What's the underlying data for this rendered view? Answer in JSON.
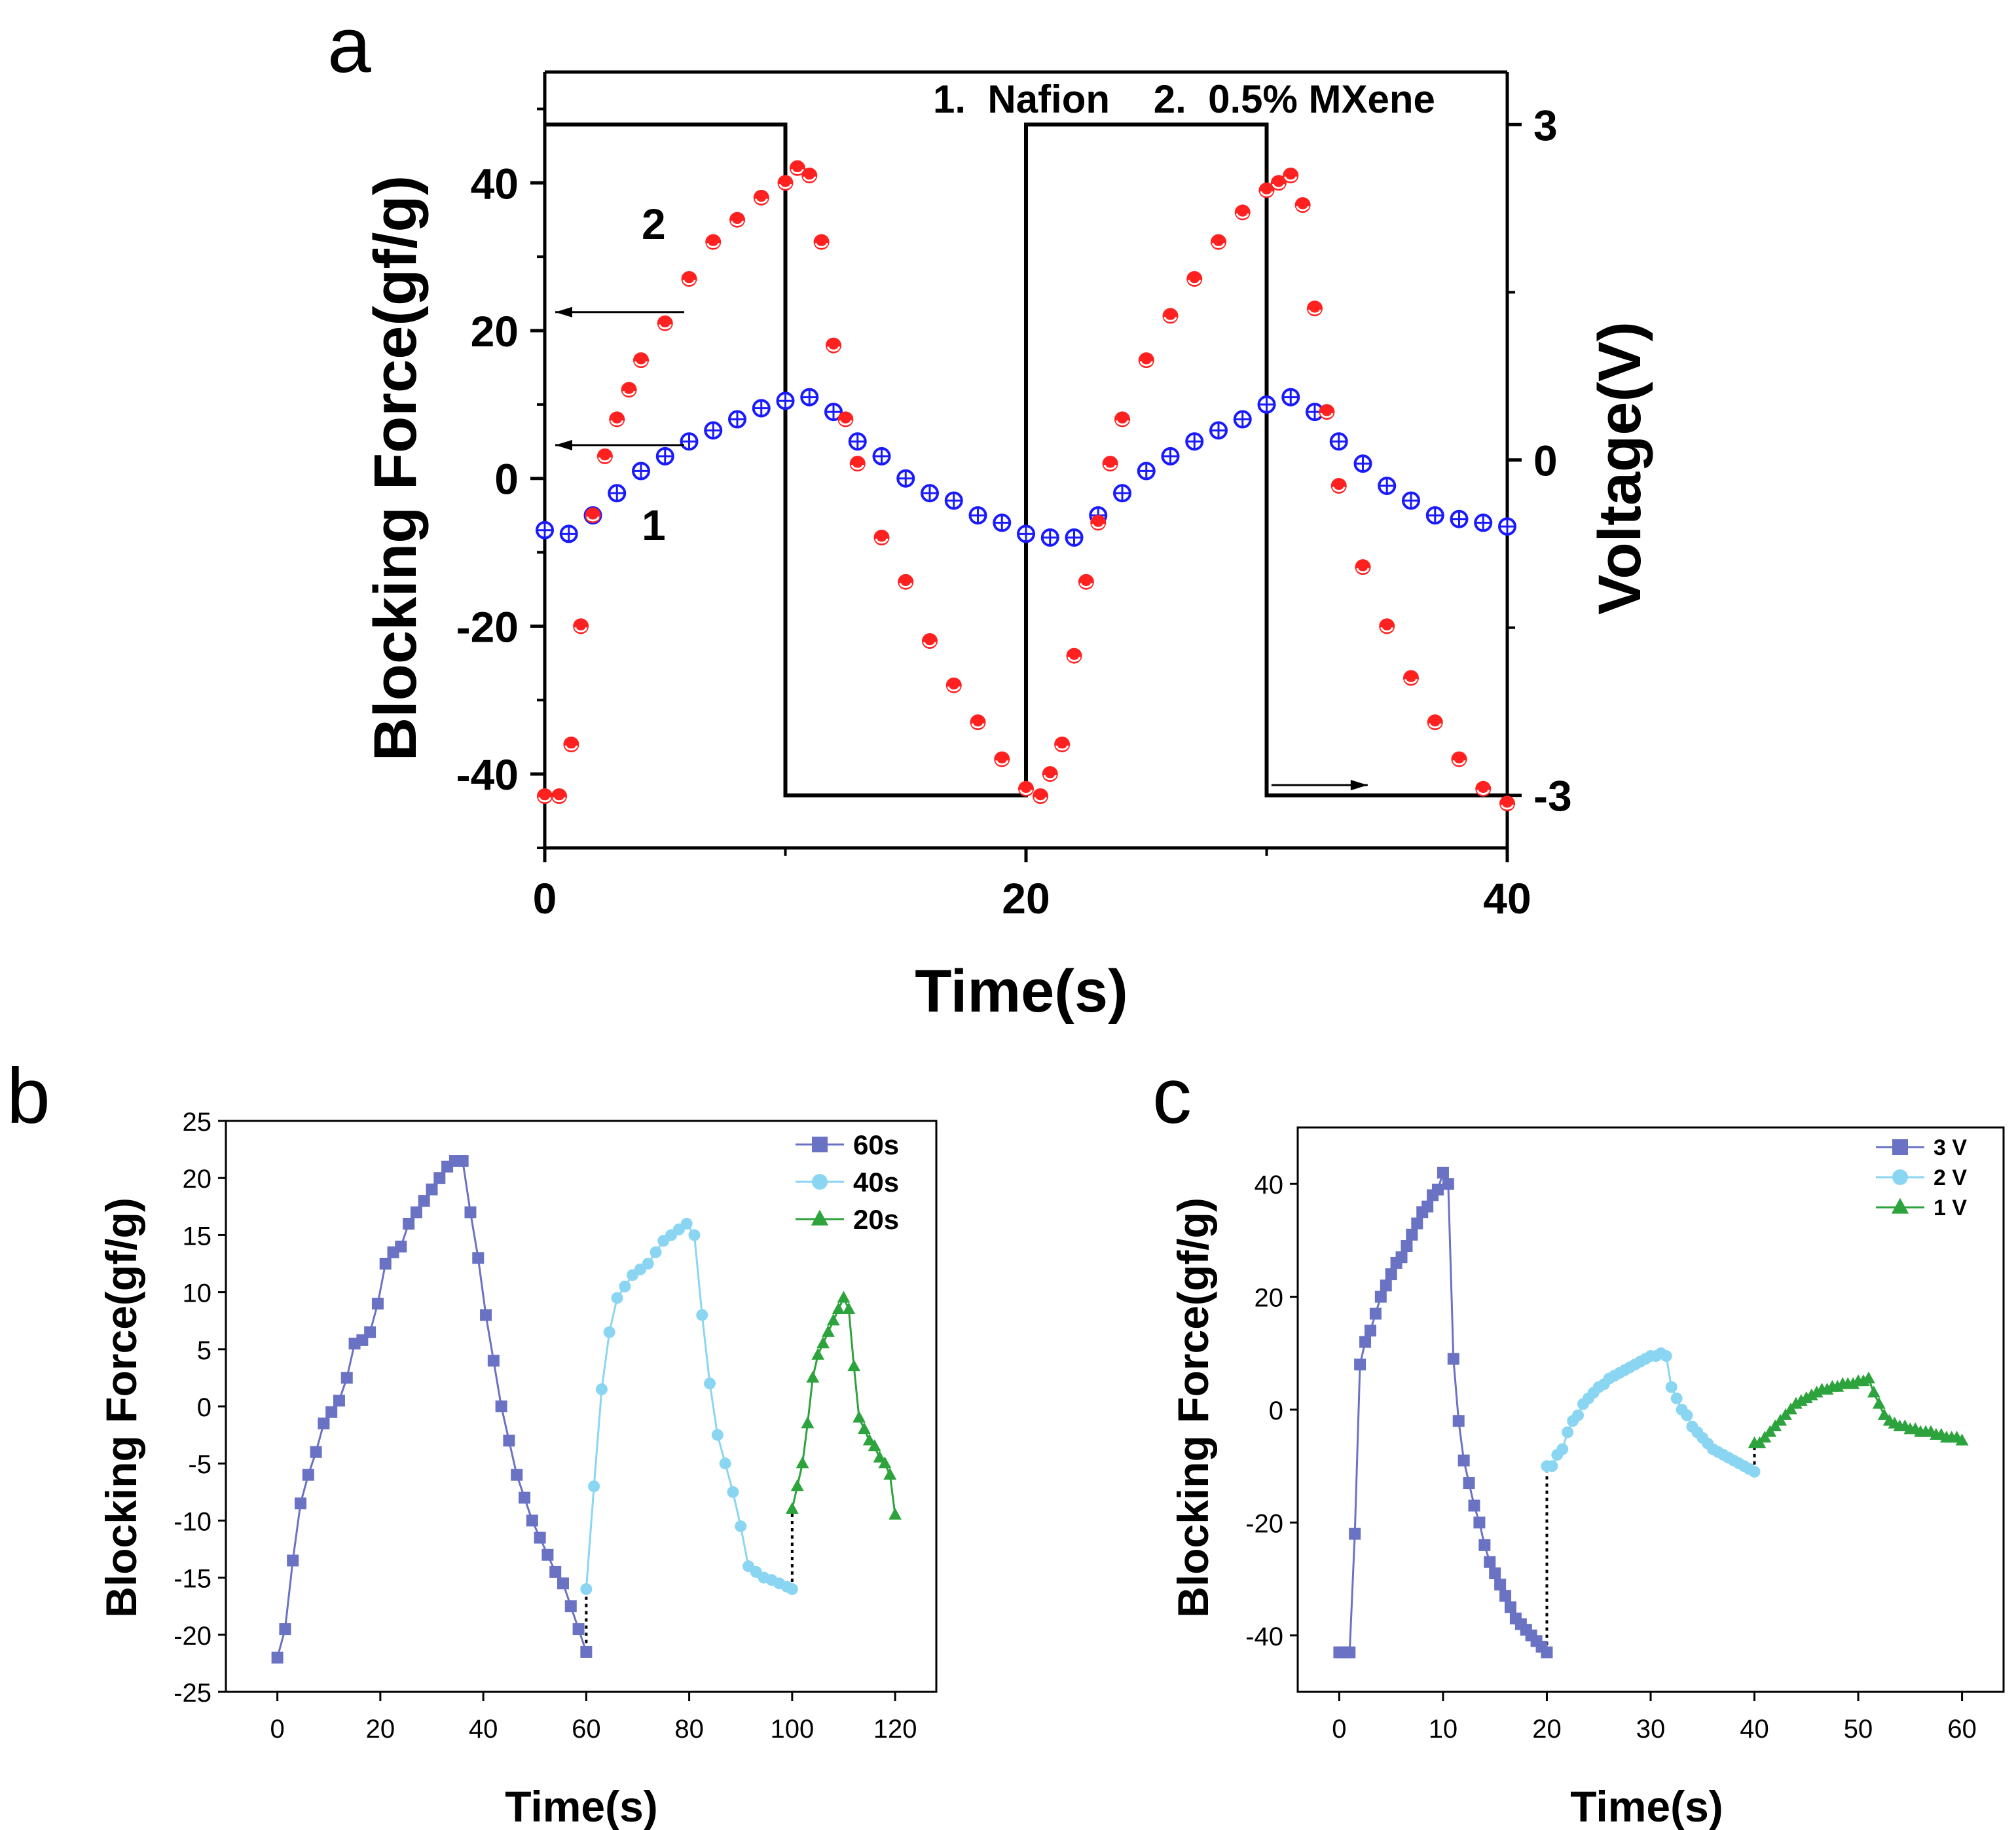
{
  "chart_data": [
    {
      "panel": "a",
      "type": "scatter",
      "xlabel": "Time(s)",
      "ylabel": "Blocking Force(gf/g)",
      "y2label": "Voltage(V)",
      "xlim": [
        0,
        40
      ],
      "ylim": [
        -50,
        55
      ],
      "y2lim": [
        -3.47,
        3.47
      ],
      "xticks": [
        0,
        20,
        40
      ],
      "yticks": [
        -40,
        -20,
        0,
        20,
        40
      ],
      "y2ticks": [
        -3,
        0,
        3
      ],
      "xtick_labels": [
        "0",
        "20",
        "40"
      ],
      "ytick_labels": [
        "-40",
        "-20",
        "0",
        "20",
        "40"
      ],
      "y2tick_labels": [
        "-3",
        "0",
        "3"
      ],
      "legend": "1.  Nafion    2.  0.5% MXene",
      "curve_labels": [
        "1",
        "2"
      ],
      "series": [
        {
          "name": "1. Nafion",
          "color": "#1a1aff",
          "marker": "circle-cross",
          "axis": "left",
          "x": [
            0,
            1,
            2,
            3,
            4,
            5,
            6,
            7,
            8,
            9,
            10,
            11,
            12,
            13,
            14,
            15,
            16,
            17,
            18,
            19,
            20,
            21,
            22,
            23,
            24,
            25,
            26,
            27,
            28,
            29,
            30,
            31,
            32,
            33,
            34,
            35,
            36,
            37,
            38,
            39,
            40
          ],
          "y": [
            -7,
            -7.5,
            -5,
            -2,
            1,
            3,
            5,
            6.5,
            8,
            9.5,
            10.5,
            11,
            9,
            5,
            3,
            0,
            -2,
            -3,
            -5,
            -6,
            -7.5,
            -8,
            -8,
            -5,
            -2,
            1,
            3,
            5,
            6.5,
            8,
            10,
            11,
            9,
            5,
            2,
            -1,
            -3,
            -5,
            -5.5,
            -6,
            -6.5
          ]
        },
        {
          "name": "2. 0.5% MXene",
          "color": "#ff2020",
          "marker": "circle-open",
          "axis": "left",
          "x": [
            0,
            0.6,
            1.1,
            1.5,
            2,
            2.5,
            3,
            3.5,
            4,
            5,
            6,
            7,
            8,
            9,
            10,
            10.5,
            11,
            11.5,
            12,
            12.5,
            13,
            14,
            15,
            16,
            17,
            18,
            19,
            20,
            20.6,
            21,
            21.5,
            22,
            22.5,
            23,
            23.5,
            24,
            25,
            26,
            27,
            28,
            29,
            30,
            30.5,
            31,
            31.5,
            32,
            32.5,
            33,
            34,
            35,
            36,
            37,
            38,
            39,
            40
          ],
          "y": [
            -43,
            -43,
            -36,
            -20,
            -5,
            3,
            8,
            12,
            16,
            21,
            27,
            32,
            35,
            38,
            40,
            42,
            41,
            32,
            18,
            8,
            2,
            -8,
            -14,
            -22,
            -28,
            -33,
            -38,
            -42,
            -43,
            -40,
            -36,
            -24,
            -14,
            -6,
            2,
            8,
            16,
            22,
            27,
            32,
            36,
            39,
            40,
            41,
            37,
            23,
            9,
            -1,
            -12,
            -20,
            -27,
            -33,
            -38,
            -42,
            -44
          ]
        },
        {
          "name": "Voltage",
          "color": "#000000",
          "marker": "line",
          "axis": "right",
          "x": [
            0,
            10,
            10,
            20,
            20,
            30,
            30,
            40
          ],
          "y": [
            3,
            3,
            -3,
            -3,
            3,
            3,
            -3,
            -3
          ]
        }
      ]
    },
    {
      "panel": "b",
      "type": "line",
      "xlabel": "Time(s)",
      "ylabel": "Blocking Force(gf/g)",
      "xlim": [
        -10,
        128
      ],
      "ylim": [
        -25,
        25
      ],
      "xticks": [
        0,
        20,
        40,
        60,
        80,
        100,
        120
      ],
      "yticks": [
        -25,
        -20,
        -15,
        -10,
        -5,
        0,
        5,
        10,
        15,
        20,
        25
      ],
      "xtick_labels": [
        "0",
        "20",
        "40",
        "60",
        "80",
        "100",
        "120"
      ],
      "ytick_labels": [
        "-25",
        "-20",
        "-15",
        "-10",
        "-5",
        "0",
        "5",
        "10",
        "15",
        "20",
        "25"
      ],
      "series": [
        {
          "name": "60s",
          "color": "#6a72c4",
          "marker": "square",
          "x": [
            0,
            1.5,
            3,
            4.5,
            6,
            7.5,
            9,
            10.5,
            12,
            13.5,
            15,
            16.5,
            18,
            19.5,
            21,
            22.5,
            24,
            25.5,
            27,
            28.5,
            30,
            31.5,
            33,
            34.5,
            36,
            37.5,
            39,
            40.5,
            42,
            43.5,
            45,
            46.5,
            48,
            49.5,
            51,
            52.5,
            54,
            55.5,
            57,
            58.5,
            60
          ],
          "y": [
            -22,
            -19.5,
            -13.5,
            -8.5,
            -6,
            -4,
            -1.5,
            -0.5,
            0.5,
            2.5,
            5.5,
            5.8,
            6.5,
            9,
            12.5,
            13.5,
            14,
            16,
            17,
            18,
            19,
            20,
            21,
            21.5,
            21.5,
            17,
            13,
            8,
            4,
            0,
            -3,
            -6,
            -8,
            -10,
            -11.5,
            -13,
            -14.5,
            -15.5,
            -17.5,
            -19.5,
            -21.5
          ]
        },
        {
          "name": "40s",
          "color": "#8ad6f2",
          "marker": "circle",
          "x": [
            60,
            61.5,
            63,
            64.5,
            66,
            67.5,
            69,
            70.5,
            72,
            73.5,
            75,
            76.5,
            78,
            79.5,
            81,
            82.5,
            84,
            85.5,
            87,
            88.5,
            90,
            91.5,
            93,
            94.5,
            96,
            97.5,
            99,
            100
          ],
          "y": [
            -16,
            -7,
            1.5,
            6.5,
            9.5,
            10.5,
            11.5,
            12,
            12.5,
            13.5,
            14.5,
            15,
            15.5,
            16,
            15,
            8,
            2,
            -2.5,
            -5,
            -7.5,
            -10.5,
            -14,
            -14.5,
            -15,
            -15.2,
            -15.5,
            -15.8,
            -16
          ]
        },
        {
          "name": "20s",
          "color": "#2ca33c",
          "marker": "triangle",
          "x": [
            100,
            101,
            102,
            103,
            104,
            105,
            106,
            107,
            108,
            109,
            110,
            111,
            112,
            113,
            114,
            115,
            116,
            117,
            118,
            119,
            120
          ],
          "y": [
            -9,
            -7,
            -5,
            -1.5,
            2.5,
            4.5,
            5.5,
            6.5,
            7.5,
            8.5,
            9.5,
            8.5,
            3.5,
            -1,
            -2,
            -3,
            -3.5,
            -4.5,
            -5,
            -6,
            -9.5
          ]
        }
      ],
      "connectors": [
        {
          "x": 60,
          "y1": -22,
          "y2": -16
        },
        {
          "x": 100,
          "y1": -16,
          "y2": -9
        }
      ]
    },
    {
      "panel": "c",
      "type": "line",
      "xlabel": "Time(s)",
      "ylabel": "Blocking Force(gf/g)",
      "xlim": [
        -4,
        64
      ],
      "ylim": [
        -50,
        50
      ],
      "xticks": [
        0,
        10,
        20,
        30,
        40,
        50,
        60
      ],
      "yticks": [
        -40,
        -20,
        0,
        20,
        40
      ],
      "xtick_labels": [
        "0",
        "10",
        "20",
        "30",
        "40",
        "50",
        "60"
      ],
      "ytick_labels": [
        "-40",
        "-20",
        "0",
        "20",
        "40"
      ],
      "series": [
        {
          "name": "3 V",
          "color": "#6a72c4",
          "marker": "square",
          "x": [
            0,
            0.5,
            1,
            1.5,
            2,
            2.5,
            3,
            3.5,
            4,
            4.5,
            5,
            5.5,
            6,
            6.5,
            7,
            7.5,
            8,
            8.5,
            9,
            9.5,
            10,
            10.5,
            11,
            11.5,
            12,
            12.5,
            13,
            13.5,
            14,
            14.5,
            15,
            15.5,
            16,
            16.5,
            17,
            17.5,
            18,
            18.5,
            19,
            19.5,
            20
          ],
          "y": [
            -43,
            -43,
            -43,
            -22,
            8,
            12,
            14,
            17,
            20,
            22,
            24,
            26,
            27,
            29,
            31,
            33,
            35,
            36,
            38,
            39,
            42,
            40,
            9,
            -2,
            -9,
            -13,
            -17,
            -20,
            -24,
            -27,
            -29,
            -31,
            -33,
            -35,
            -37,
            -38,
            -39,
            -40,
            -41,
            -42,
            -43
          ]
        },
        {
          "name": "2 V",
          "color": "#8ad6f2",
          "marker": "circle",
          "x": [
            20,
            20.5,
            21,
            21.5,
            22,
            22.5,
            23,
            23.5,
            24,
            24.5,
            25,
            25.5,
            26,
            26.5,
            27,
            27.5,
            28,
            28.5,
            29,
            29.5,
            30,
            30.5,
            31,
            31.5,
            32,
            32.5,
            33,
            33.5,
            34,
            34.5,
            35,
            35.5,
            36,
            36.5,
            37,
            37.5,
            38,
            38.5,
            39,
            39.5,
            40
          ],
          "y": [
            -10,
            -10,
            -8,
            -7,
            -4,
            -2,
            -1,
            1,
            2,
            3,
            4,
            4.5,
            5.5,
            6,
            6.5,
            7,
            7.5,
            8,
            8.5,
            9,
            9.5,
            9.5,
            10,
            9.5,
            4,
            2,
            0,
            -1,
            -3,
            -4,
            -5,
            -6,
            -7,
            -7.5,
            -8,
            -8.5,
            -9,
            -9.5,
            -10,
            -10.5,
            -11
          ]
        },
        {
          "name": "1 V",
          "color": "#2ca33c",
          "marker": "triangle",
          "x": [
            40,
            40.5,
            41,
            41.5,
            42,
            42.5,
            43,
            43.5,
            44,
            44.5,
            45,
            45.5,
            46,
            46.5,
            47,
            47.5,
            48,
            48.5,
            49,
            49.5,
            50,
            50.5,
            51,
            51.5,
            52,
            52.5,
            53,
            53.5,
            54,
            54.5,
            55,
            55.5,
            56,
            56.5,
            57,
            57.5,
            58,
            58.5,
            59,
            59.5,
            60
          ],
          "y": [
            -6,
            -6,
            -5,
            -4,
            -3,
            -2,
            -1,
            0,
            1,
            1.5,
            2,
            2.5,
            3,
            3.5,
            3.5,
            4,
            4,
            4.5,
            4.5,
            4.5,
            5,
            5,
            5.5,
            3,
            1,
            -1,
            -2,
            -2.5,
            -3,
            -3,
            -3.5,
            -3.5,
            -4,
            -4,
            -4,
            -4.5,
            -4.5,
            -5,
            -5,
            -5,
            -5.5
          ]
        }
      ],
      "connectors": [
        {
          "x": 20,
          "y1": -43,
          "y2": -10
        },
        {
          "x": 40,
          "y1": -11,
          "y2": -6
        }
      ]
    }
  ],
  "panels": {
    "a": {
      "letter": "a"
    },
    "b": {
      "letter": "b"
    },
    "c": {
      "letter": "c"
    }
  }
}
